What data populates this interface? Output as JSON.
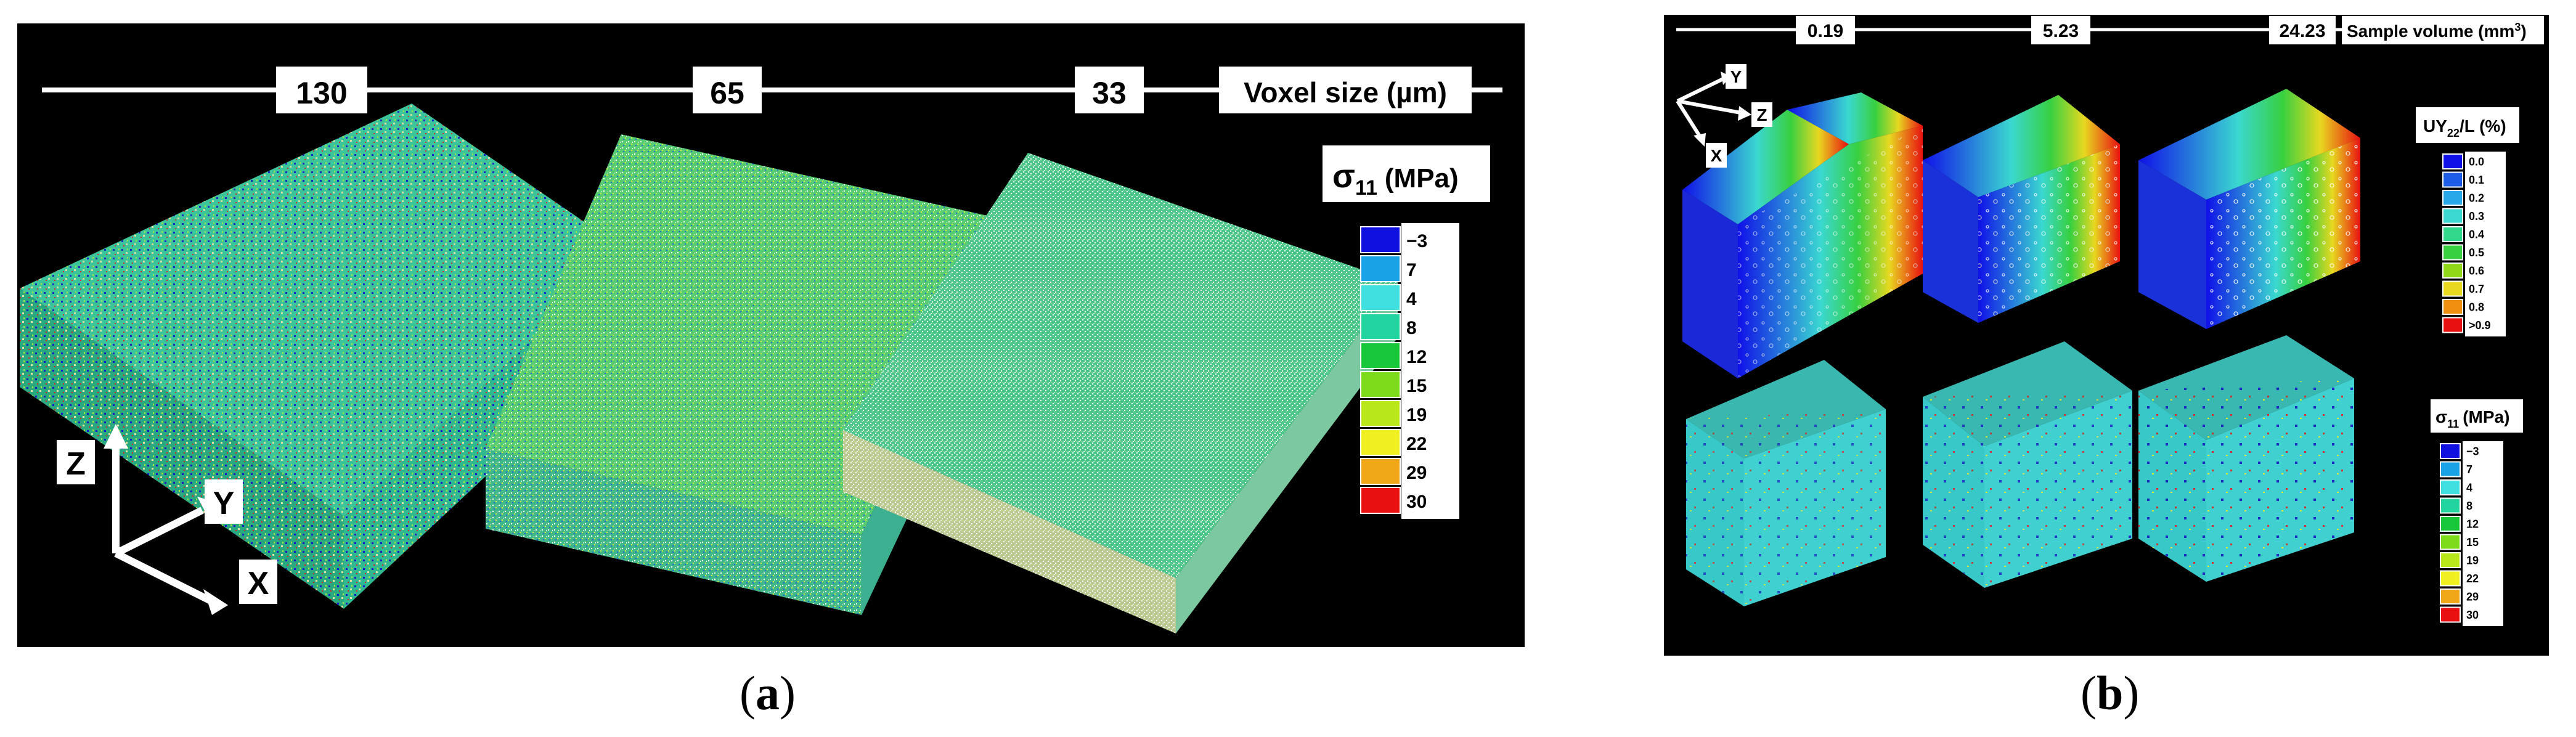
{
  "panel_a": {
    "scale_labels": [
      "130",
      "65",
      "33"
    ],
    "scale_title": "Voxel size (µm)",
    "legend_title_sym": "σ",
    "legend_title_sub": "11",
    "legend_title_unit": "(MPa)",
    "legend_values": [
      "−3",
      "7",
      "4",
      "8",
      "12",
      "15",
      "19",
      "22",
      "29",
      "30"
    ],
    "axes": [
      "Z",
      "Y",
      "X"
    ],
    "caption_open": "(",
    "caption_letter": "a",
    "caption_close": ")"
  },
  "panel_b": {
    "scale_labels": [
      "0.19",
      "5.23",
      "24.23"
    ],
    "scale_title": "Sample volume (mm",
    "scale_title_sup": "3",
    "scale_title_end": ")",
    "axes": [
      "Y",
      "Z",
      "X"
    ],
    "legend1_title_a": "UY",
    "legend1_title_sub": "22",
    "legend1_title_b": "/L (%)",
    "legend1_values": [
      "0.0",
      "0.1",
      "0.2",
      "0.3",
      "0.4",
      "0.5",
      "0.6",
      "0.7",
      "0.8",
      ">0.9"
    ],
    "legend2_title_sym": "σ",
    "legend2_title_sub": "11",
    "legend2_title_unit": "(MPa)",
    "legend2_values": [
      "−3",
      "7",
      "4",
      "8",
      "12",
      "15",
      "19",
      "22",
      "29",
      "30"
    ],
    "caption_open": "(",
    "caption_letter": "b",
    "caption_close": ")"
  },
  "colors": {
    "stress_scale": [
      "#1010e0",
      "#19a3e6",
      "#40e0e0",
      "#22d4a0",
      "#18c83a",
      "#7cdc1c",
      "#b8e81a",
      "#f0f020",
      "#f0a818",
      "#e81010"
    ],
    "displacement_scale": [
      "#1010e8",
      "#1c5ce8",
      "#28a8e8",
      "#3ad8d0",
      "#32d88c",
      "#38d040",
      "#90d818",
      "#e8d820",
      "#f09010",
      "#e81010"
    ]
  }
}
